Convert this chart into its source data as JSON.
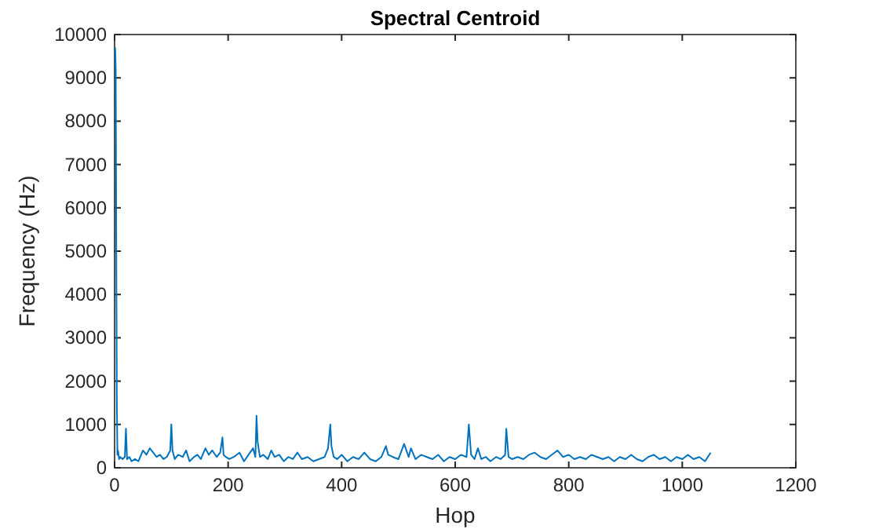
{
  "chart_data": {
    "type": "line",
    "title": "Spectral Centroid",
    "xlabel": "Hop",
    "ylabel": "Frequency (Hz)",
    "xlim": [
      0,
      1200
    ],
    "xticks": [
      0,
      200,
      400,
      600,
      800,
      1000,
      1200
    ],
    "ylim": [
      0,
      10000
    ],
    "yticks": [
      0,
      1000,
      2000,
      3000,
      4000,
      5000,
      6000,
      7000,
      8000,
      9000,
      10000
    ],
    "grid": false,
    "marker": "none",
    "line_style": "solid",
    "series": [
      {
        "color": "#0072bd",
        "x": [
          1,
          2,
          3,
          4,
          5,
          6,
          8,
          10,
          14,
          18,
          20,
          22,
          26,
          30,
          36,
          42,
          50,
          56,
          62,
          68,
          74,
          80,
          86,
          92,
          98,
          100,
          102,
          106,
          112,
          120,
          126,
          132,
          140,
          146,
          152,
          160,
          166,
          172,
          180,
          186,
          190,
          192,
          196,
          202,
          210,
          220,
          228,
          236,
          244,
          248,
          250,
          252,
          256,
          262,
          270,
          276,
          282,
          290,
          298,
          306,
          314,
          322,
          330,
          340,
          350,
          360,
          370,
          376,
          380,
          382,
          386,
          392,
          400,
          410,
          420,
          430,
          440,
          450,
          460,
          470,
          478,
          482,
          490,
          500,
          510,
          518,
          522,
          530,
          540,
          550,
          560,
          570,
          580,
          590,
          600,
          610,
          620,
          624,
          628,
          634,
          640,
          646,
          654,
          662,
          672,
          680,
          688,
          690,
          694,
          700,
          710,
          720,
          730,
          740,
          750,
          760,
          770,
          780,
          790,
          800,
          810,
          820,
          830,
          840,
          850,
          860,
          870,
          880,
          890,
          900,
          910,
          920,
          930,
          940,
          950,
          960,
          970,
          980,
          990,
          1000,
          1010,
          1020,
          1030,
          1040,
          1050
        ],
        "values": [
          9700,
          9200,
          5000,
          1500,
          300,
          400,
          200,
          250,
          200,
          250,
          900,
          200,
          250,
          150,
          200,
          150,
          400,
          300,
          450,
          350,
          250,
          300,
          200,
          250,
          400,
          1000,
          400,
          200,
          300,
          250,
          400,
          150,
          250,
          300,
          200,
          450,
          300,
          400,
          250,
          350,
          700,
          300,
          250,
          200,
          250,
          350,
          150,
          300,
          450,
          250,
          1200,
          600,
          250,
          300,
          200,
          400,
          250,
          300,
          150,
          250,
          200,
          350,
          200,
          250,
          150,
          200,
          250,
          450,
          1000,
          500,
          250,
          200,
          300,
          150,
          250,
          200,
          350,
          200,
          150,
          250,
          500,
          300,
          250,
          200,
          550,
          250,
          450,
          200,
          300,
          250,
          200,
          300,
          150,
          250,
          200,
          300,
          250,
          1000,
          300,
          200,
          450,
          200,
          250,
          150,
          250,
          200,
          300,
          900,
          250,
          200,
          250,
          200,
          300,
          350,
          250,
          200,
          300,
          400,
          250,
          300,
          200,
          250,
          200,
          300,
          250,
          200,
          250,
          150,
          250,
          200,
          300,
          200,
          150,
          250,
          300,
          200,
          250,
          150,
          250,
          200,
          300,
          200,
          250,
          150,
          350
        ]
      }
    ]
  }
}
